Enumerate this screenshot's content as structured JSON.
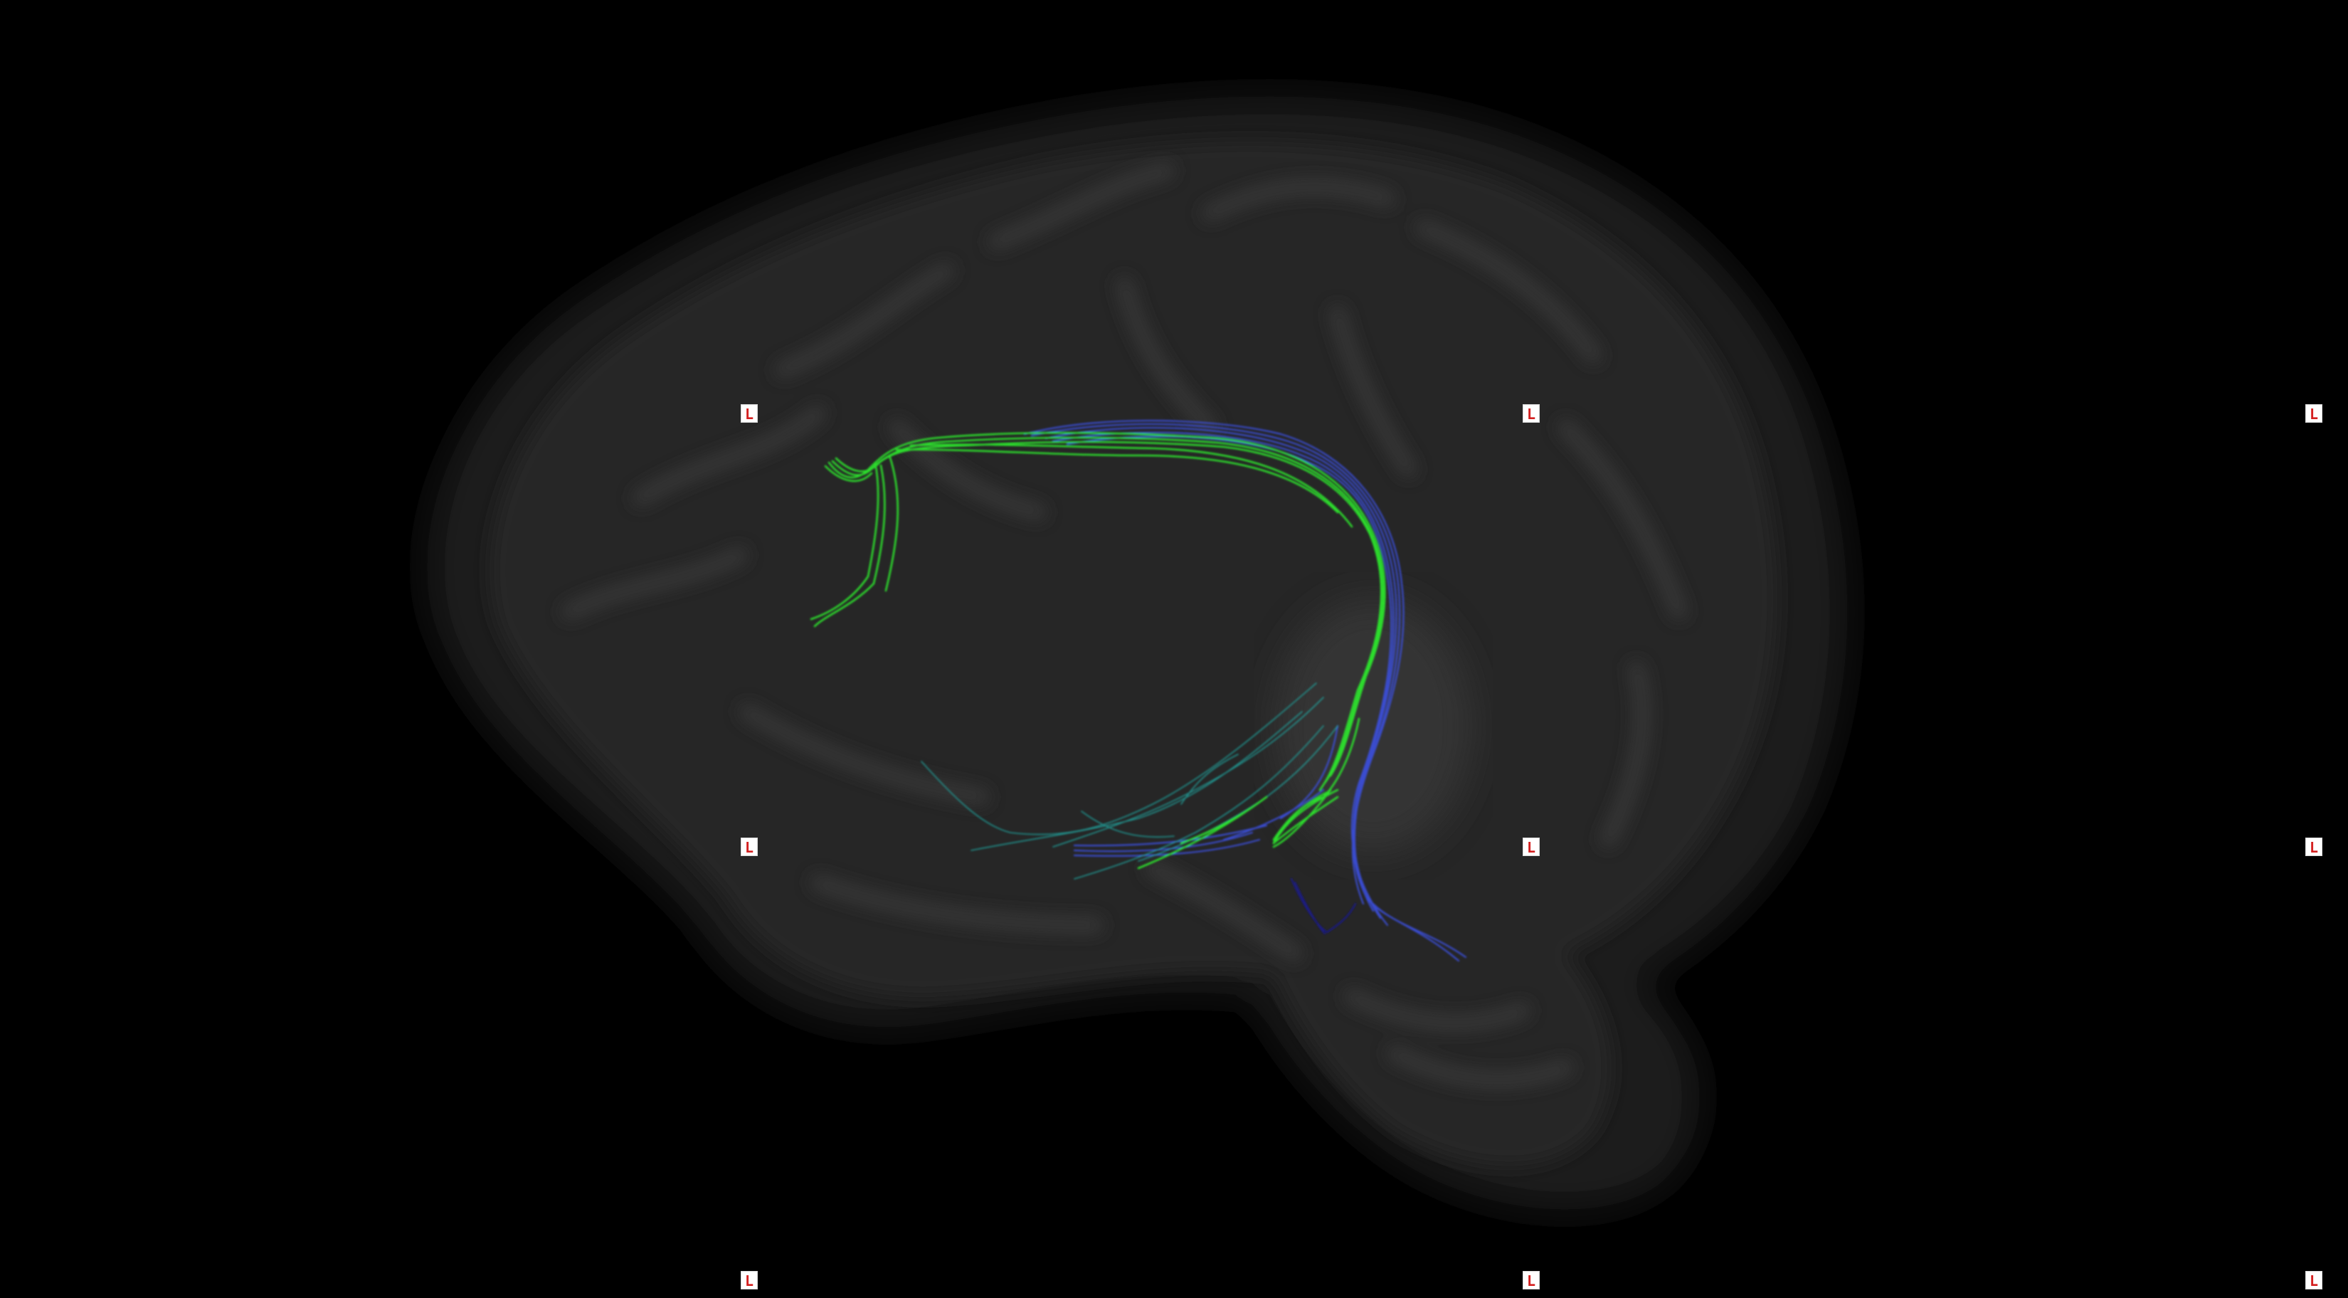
{
  "viewer": {
    "view_name": "tractography-sagittal-view",
    "background_color": "#000000"
  },
  "orientation_markers": [
    {
      "label": "L",
      "color": "#d42020"
    },
    {
      "label": "L",
      "color": "#d42020"
    },
    {
      "label": "L",
      "color": "#d42020"
    },
    {
      "label": "L",
      "color": "#d42020"
    },
    {
      "label": "L",
      "color": "#d42020"
    },
    {
      "label": "L",
      "color": "#d42020"
    },
    {
      "label": "L",
      "color": "#d42020"
    },
    {
      "label": "L",
      "color": "#d42020"
    },
    {
      "label": "L",
      "color": "#d42020"
    }
  ],
  "tract_colors": {
    "green": "#2ee62e",
    "blue": "#3b4fe0",
    "teal": "#22a6a0",
    "dark_blue": "#1a1a90"
  }
}
